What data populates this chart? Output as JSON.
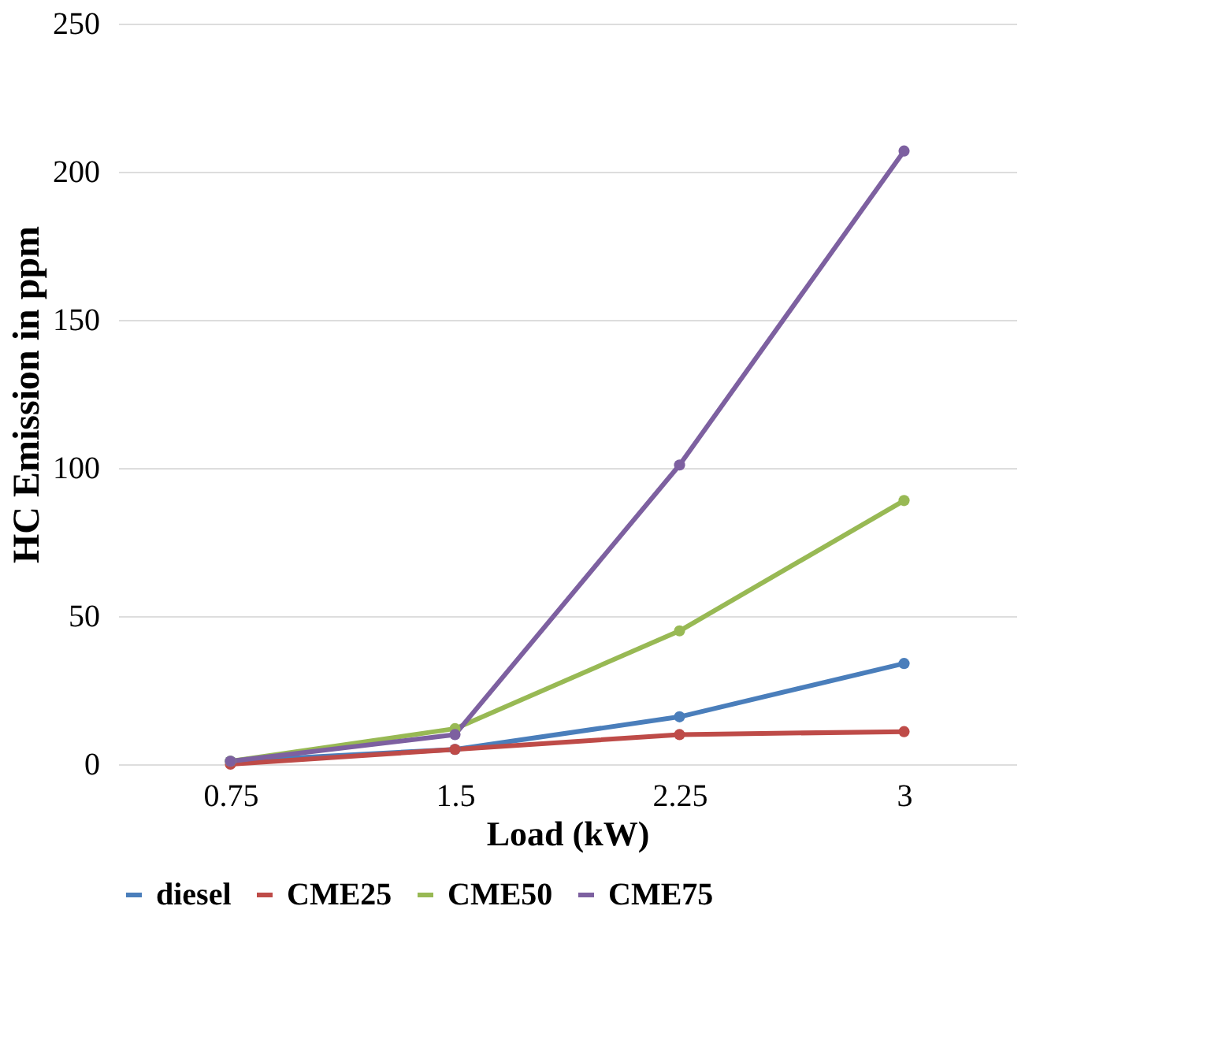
{
  "chart_data": {
    "type": "line",
    "xlabel": "Load (kW)",
    "ylabel": "HC Emission in ppm",
    "categories": [
      "0.75",
      "1.5",
      "2.25",
      "3"
    ],
    "series": [
      {
        "name": "diesel",
        "color": "#4a7ebb",
        "values": [
          1,
          5,
          16,
          34
        ]
      },
      {
        "name": "CME25",
        "color": "#be4b48",
        "values": [
          0,
          5,
          10,
          11
        ]
      },
      {
        "name": "CME50",
        "color": "#98b954",
        "values": [
          1,
          12,
          45,
          89
        ]
      },
      {
        "name": "CME75",
        "color": "#7d60a0",
        "values": [
          1,
          10,
          101,
          207
        ]
      }
    ],
    "ylim": [
      0,
      250
    ],
    "yticks": [
      0,
      50,
      100,
      150,
      200,
      250
    ],
    "grid": "y",
    "legend": "bottom",
    "marker": "circle",
    "line_style": "solid"
  }
}
